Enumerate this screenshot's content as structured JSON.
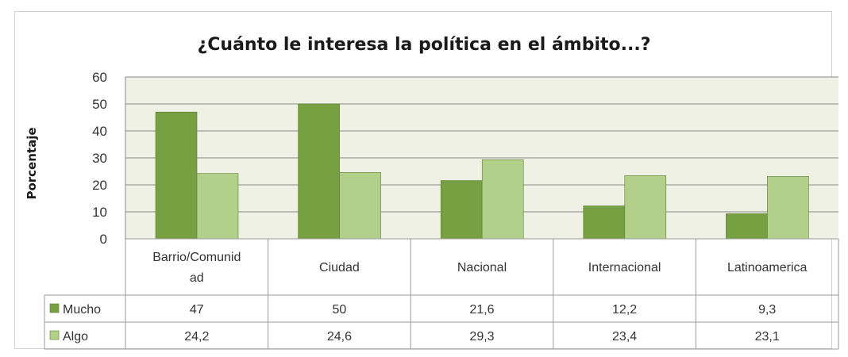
{
  "chart_data": {
    "type": "bar",
    "title": "¿Cuánto le interesa la política en el ámbito...?",
    "ylabel": "Porcentaje",
    "xlabel": "",
    "ylim": [
      0,
      60
    ],
    "yticks": [
      0,
      10,
      20,
      30,
      40,
      50,
      60
    ],
    "grid": true,
    "legend": "table-left",
    "categories": [
      "Barrio/Comunidad",
      "Ciudad",
      "Nacional",
      "Internacional",
      "Latinoamerica"
    ],
    "category_labels": [
      [
        "Barrio/Comunid",
        "ad"
      ],
      [
        "Ciudad"
      ],
      [
        "Nacional"
      ],
      [
        "Internacional"
      ],
      [
        "Latinoamerica"
      ]
    ],
    "series": [
      {
        "name": "Mucho",
        "values": [
          47,
          50,
          21.6,
          12.2,
          9.3
        ],
        "labels": [
          "47",
          "50",
          "21,6",
          "12,2",
          "9,3"
        ],
        "color": "#77a043"
      },
      {
        "name": "Algo",
        "values": [
          24.2,
          24.6,
          29.3,
          23.4,
          23.1
        ],
        "labels": [
          "24,2",
          "24,6",
          "29,3",
          "23,4",
          "23,1"
        ],
        "color": "#b3d08a"
      }
    ],
    "colors": {
      "plot_bg": "#eef1e3",
      "grid": "#8a8a8a",
      "table_border": "#9a9a9a"
    }
  }
}
